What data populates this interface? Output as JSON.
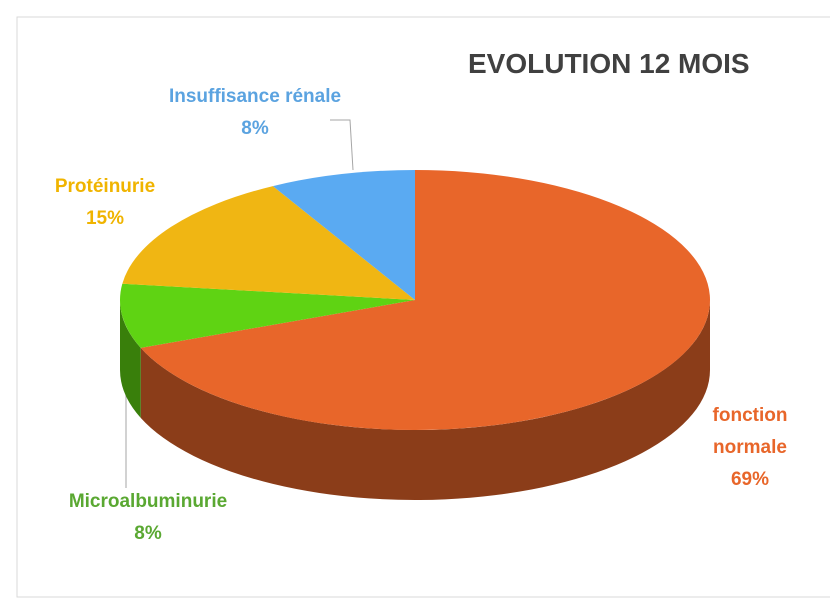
{
  "chart_data": {
    "type": "pie",
    "title": "EVOLUTION 12 MOIS",
    "categories": [
      "fonction normale",
      "Microalbuminurie",
      "Protéinurie",
      "Insuffisance rénale"
    ],
    "values": [
      69,
      8,
      15,
      8
    ],
    "value_labels": [
      "69%",
      "8%",
      "15%",
      "8%"
    ],
    "colors": [
      "#e8662a",
      "#5fd313",
      "#f0b613",
      "#5aaaf2"
    ],
    "label_colors": [
      "#e8662a",
      "#5aa832",
      "#f0b400",
      "#5ba3e0"
    ]
  }
}
